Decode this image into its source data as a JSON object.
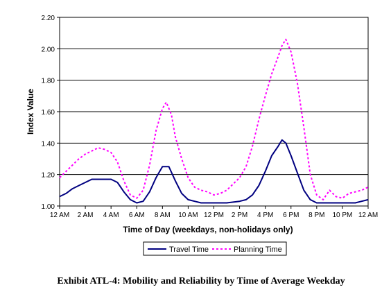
{
  "caption": "Exhibit ATL-4: Mobility and Reliability by Time of Average Weekday",
  "chart_data": {
    "type": "line",
    "xlabel": "Time of Day (weekdays, non-holidays only)",
    "ylabel": "Index Value",
    "ylim": [
      1.0,
      2.2
    ],
    "yticks": [
      "1.00",
      "1.20",
      "1.40",
      "1.60",
      "1.80",
      "2.00",
      "2.20"
    ],
    "xlim": [
      0,
      24
    ],
    "xticks": [
      "12 AM",
      "2 AM",
      "4 AM",
      "6 AM",
      "8 AM",
      "10 AM",
      "12 PM",
      "2 PM",
      "4 PM",
      "6 PM",
      "8 PM",
      "10 PM",
      "12 AM"
    ],
    "grid": "horizontal",
    "legend_position": "bottom",
    "series": [
      {
        "name": "Travel Time",
        "color": "#000080",
        "style": "solid",
        "points": [
          [
            0,
            1.06
          ],
          [
            0.5,
            1.08
          ],
          [
            1,
            1.11
          ],
          [
            1.5,
            1.13
          ],
          [
            2,
            1.15
          ],
          [
            2.5,
            1.17
          ],
          [
            3,
            1.17
          ],
          [
            3.5,
            1.17
          ],
          [
            4,
            1.17
          ],
          [
            4.5,
            1.15
          ],
          [
            5,
            1.09
          ],
          [
            5.5,
            1.04
          ],
          [
            6,
            1.02
          ],
          [
            6.5,
            1.03
          ],
          [
            7,
            1.09
          ],
          [
            7.5,
            1.18
          ],
          [
            8,
            1.25
          ],
          [
            8.5,
            1.25
          ],
          [
            9,
            1.16
          ],
          [
            9.5,
            1.08
          ],
          [
            10,
            1.04
          ],
          [
            10.5,
            1.03
          ],
          [
            11,
            1.02
          ],
          [
            12,
            1.02
          ],
          [
            13,
            1.02
          ],
          [
            14,
            1.03
          ],
          [
            14.5,
            1.04
          ],
          [
            15,
            1.07
          ],
          [
            15.5,
            1.13
          ],
          [
            16,
            1.22
          ],
          [
            16.5,
            1.32
          ],
          [
            17,
            1.38
          ],
          [
            17.3,
            1.42
          ],
          [
            17.6,
            1.4
          ],
          [
            18,
            1.32
          ],
          [
            18.5,
            1.21
          ],
          [
            19,
            1.1
          ],
          [
            19.5,
            1.04
          ],
          [
            20,
            1.02
          ],
          [
            21,
            1.02
          ],
          [
            22,
            1.02
          ],
          [
            23,
            1.02
          ],
          [
            23.5,
            1.03
          ],
          [
            24,
            1.04
          ]
        ]
      },
      {
        "name": "Planning Time",
        "color": "#ff00ff",
        "style": "dashed",
        "points": [
          [
            0,
            1.18
          ],
          [
            0.5,
            1.22
          ],
          [
            1,
            1.26
          ],
          [
            1.5,
            1.3
          ],
          [
            2,
            1.33
          ],
          [
            2.5,
            1.35
          ],
          [
            3,
            1.37
          ],
          [
            3.5,
            1.36
          ],
          [
            4,
            1.34
          ],
          [
            4.5,
            1.28
          ],
          [
            5,
            1.16
          ],
          [
            5.5,
            1.07
          ],
          [
            6,
            1.05
          ],
          [
            6.5,
            1.1
          ],
          [
            7,
            1.26
          ],
          [
            7.5,
            1.48
          ],
          [
            8,
            1.62
          ],
          [
            8.3,
            1.66
          ],
          [
            8.7,
            1.58
          ],
          [
            9,
            1.44
          ],
          [
            9.5,
            1.3
          ],
          [
            10,
            1.18
          ],
          [
            10.5,
            1.12
          ],
          [
            11,
            1.1
          ],
          [
            11.5,
            1.09
          ],
          [
            12,
            1.07
          ],
          [
            12.5,
            1.08
          ],
          [
            13,
            1.1
          ],
          [
            13.5,
            1.14
          ],
          [
            14,
            1.18
          ],
          [
            14.5,
            1.25
          ],
          [
            15,
            1.38
          ],
          [
            15.5,
            1.55
          ],
          [
            16,
            1.7
          ],
          [
            16.5,
            1.84
          ],
          [
            17,
            1.95
          ],
          [
            17.3,
            2.02
          ],
          [
            17.6,
            2.06
          ],
          [
            18,
            1.98
          ],
          [
            18.5,
            1.78
          ],
          [
            19,
            1.5
          ],
          [
            19.5,
            1.2
          ],
          [
            20,
            1.07
          ],
          [
            20.5,
            1.04
          ],
          [
            21,
            1.1
          ],
          [
            21.5,
            1.06
          ],
          [
            22,
            1.05
          ],
          [
            22.5,
            1.08
          ],
          [
            23,
            1.09
          ],
          [
            23.5,
            1.1
          ],
          [
            24,
            1.12
          ]
        ]
      }
    ]
  }
}
